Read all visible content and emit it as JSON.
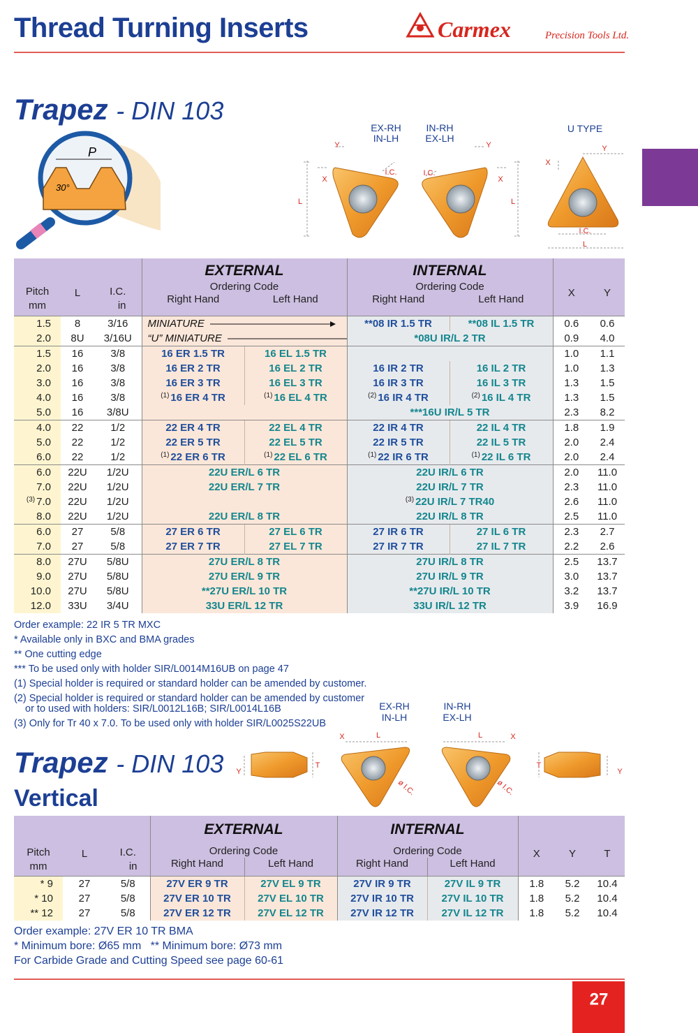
{
  "header": {
    "title": "Thread Turning Inserts",
    "brand": "Carmex",
    "brand_sub": "Precision Tools Ltd."
  },
  "section1": {
    "title": "Trapez",
    "subtitle": "- DIN 103",
    "magnifier": [
      "P",
      "30°"
    ],
    "captions": [
      "EX-RH",
      "IN-LH",
      "IN-RH",
      "EX-LH",
      "U TYPE"
    ],
    "dims": [
      "Y",
      "X",
      "L",
      "I.C.",
      "I.C.",
      "Y",
      "X",
      "L",
      "Y",
      "X",
      "I.C.",
      "L"
    ]
  },
  "table1": {
    "head": {
      "pitch": "Pitch",
      "pitch_unit": "mm",
      "l": "L",
      "ic": "I.C.",
      "ic_unit": "in",
      "external": {
        "title": "EXTERNAL",
        "sub": "Ordering Code",
        "right": "Right Hand",
        "left": "Left Hand"
      },
      "internal": {
        "title": "INTERNAL",
        "sub": "Ordering Code",
        "right": "Right Hand",
        "left": "Left Hand"
      },
      "x": "X",
      "y": "Y"
    },
    "groups": [
      [
        {
          "pitch": "1.5",
          "l": "8",
          "ic": "3/16",
          "ext_lead": "MINIATURE",
          "int": [
            "**08 IR 1.5 TR",
            "**08 IL 1.5 TR"
          ],
          "x": "0.6",
          "y": "0.6"
        },
        {
          "pitch": "2.0",
          "l": "8U",
          "ic": "3/16U",
          "ext_lead": "“U” MINIATURE",
          "int": "*08U IR/L 2 TR",
          "x": "0.9",
          "y": "4.0"
        }
      ],
      [
        {
          "pitch": "1.5",
          "l": "16",
          "ic": "3/8",
          "ext": [
            "16 ER 1.5 TR",
            "16 EL 1.5 TR"
          ],
          "x": "1.0",
          "y": "1.1"
        },
        {
          "pitch": "2.0",
          "l": "16",
          "ic": "3/8",
          "ext": [
            "16 ER 2 TR",
            "16 EL 2 TR"
          ],
          "int": [
            "16 IR 2 TR",
            "16 IL 2 TR"
          ],
          "x": "1.0",
          "y": "1.3"
        },
        {
          "pitch": "3.0",
          "l": "16",
          "ic": "3/8",
          "ext": [
            "16 ER 3 TR",
            "16 EL 3 TR"
          ],
          "int": [
            "16 IR 3 TR",
            "16 IL 3 TR"
          ],
          "x": "1.3",
          "y": "1.5"
        },
        {
          "pitch": "4.0",
          "l": "16",
          "ic": "3/8",
          "ext": [
            {
              "note": "(1)",
              "text": "16 ER 4 TR"
            },
            {
              "note": "(1)",
              "text": "16 EL 4 TR"
            }
          ],
          "int": [
            {
              "note": "(2)",
              "text": "16 IR 4 TR"
            },
            {
              "note": "(2)",
              "text": "16 IL 4 TR"
            }
          ],
          "x": "1.3",
          "y": "1.5"
        },
        {
          "pitch": "5.0",
          "l": "16",
          "ic": "3/8U",
          "int": "***16U IR/L 5 TR",
          "x": "2.3",
          "y": "8.2"
        }
      ],
      [
        {
          "pitch": "4.0",
          "l": "22",
          "ic": "1/2",
          "ext": [
            "22 ER 4 TR",
            "22 EL 4 TR"
          ],
          "int": [
            "22 IR 4 TR",
            "22 IL 4 TR"
          ],
          "x": "1.8",
          "y": "1.9"
        },
        {
          "pitch": "5.0",
          "l": "22",
          "ic": "1/2",
          "ext": [
            "22 ER 5 TR",
            "22 EL 5 TR"
          ],
          "int": [
            "22 IR 5 TR",
            "22 IL 5 TR"
          ],
          "x": "2.0",
          "y": "2.4"
        },
        {
          "pitch": "6.0",
          "l": "22",
          "ic": "1/2",
          "ext": [
            {
              "note": "(1)",
              "text": "22 ER 6 TR"
            },
            {
              "note": "(1)",
              "text": "22 EL 6 TR"
            }
          ],
          "int": [
            {
              "note": "(1)",
              "text": "22 IR 6 TR"
            },
            {
              "note": "(1)",
              "text": "22 IL 6 TR"
            }
          ],
          "x": "2.0",
          "y": "2.4"
        }
      ],
      [
        {
          "pitch": "6.0",
          "l": "22U",
          "ic": "1/2U",
          "ext": "22U ER/L 6 TR",
          "int": "22U IR/L 6 TR",
          "x": "2.0",
          "y": "11.0"
        },
        {
          "pitch": "7.0",
          "l": "22U",
          "ic": "1/2U",
          "ext": "22U ER/L 7 TR",
          "int": "22U IR/L 7 TR",
          "x": "2.3",
          "y": "11.0"
        },
        {
          "pitch": {
            "note": "(3)",
            "text": "7.0"
          },
          "l": "22U",
          "ic": "1/2U",
          "int": {
            "note": "(3)",
            "text": "22U IR/L 7 TR40"
          },
          "x": "2.6",
          "y": "11.0"
        },
        {
          "pitch": "8.0",
          "l": "22U",
          "ic": "1/2U",
          "ext": "22U ER/L 8 TR",
          "int": "22U IR/L 8 TR",
          "x": "2.5",
          "y": "11.0"
        }
      ],
      [
        {
          "pitch": "6.0",
          "l": "27",
          "ic": "5/8",
          "ext": [
            "27 ER 6 TR",
            "27 EL 6 TR"
          ],
          "int": [
            "27 IR 6 TR",
            "27 IL 6 TR"
          ],
          "x": "2.3",
          "y": "2.7"
        },
        {
          "pitch": "7.0",
          "l": "27",
          "ic": "5/8",
          "ext": [
            "27 ER 7 TR",
            "27 EL 7 TR"
          ],
          "int": [
            "27 IR 7 TR",
            "27 IL 7 TR"
          ],
          "x": "2.2",
          "y": "2.6"
        }
      ],
      [
        {
          "pitch": "8.0",
          "l": "27U",
          "ic": "5/8U",
          "ext": "27U ER/L 8 TR",
          "int": "27U IR/L 8 TR",
          "x": "2.5",
          "y": "13.7"
        },
        {
          "pitch": "9.0",
          "l": "27U",
          "ic": "5/8U",
          "ext": "27U ER/L 9 TR",
          "int": "27U IR/L 9 TR",
          "x": "3.0",
          "y": "13.7"
        },
        {
          "pitch": "10.0",
          "l": "27U",
          "ic": "5/8U",
          "ext": "**27U ER/L 10 TR",
          "int": "**27U IR/L 10 TR",
          "x": "3.2",
          "y": "13.7"
        },
        {
          "pitch": "12.0",
          "l": "33U",
          "ic": "3/4U",
          "ext": "33U ER/L 12 TR",
          "int": "33U IR/L 12 TR",
          "x": "3.9",
          "y": "16.9"
        }
      ]
    ]
  },
  "notes1": [
    "Order example: 22 IR 5 TR MXC",
    "* Available only in BXC and BMA grades",
    "** One cutting edge",
    "*** To be used only with holder SIR/L0014M16UB on page 47",
    "(1) Special holder is required or standard holder can be amended by customer.",
    "(2) Special holder is required or standard holder can be amended by customer",
    "or to used with holders: SIR/L0012L16B; SIR/L0014L16B",
    "(3) Only for Tr 40 x 7.0. To be used only with holder SIR/L0025S22UB"
  ],
  "section2": {
    "title": "Trapez",
    "subtitle": "- DIN 103",
    "subtitle2": "Vertical",
    "captions": [
      "EX-RH",
      "IN-LH",
      "IN-RH",
      "EX-LH"
    ],
    "dims": [
      "Y",
      "T",
      "X",
      "L",
      "ø I.C.",
      "L",
      "X",
      "ø I.C.",
      "T",
      "Y"
    ]
  },
  "table2": {
    "head": {
      "pitch": "Pitch",
      "pitch_unit": "mm",
      "l": "L",
      "ic": "I.C.",
      "ic_unit": "in",
      "external": {
        "title": "EXTERNAL",
        "sub": "Ordering Code",
        "right": "Right Hand",
        "left": "Left Hand"
      },
      "internal": {
        "title": "INTERNAL",
        "sub": "Ordering Code",
        "right": "Right Hand",
        "left": "Left Hand"
      },
      "x": "X",
      "y": "Y",
      "t": "T"
    },
    "rows": [
      [
        "* 9",
        "27",
        "5/8",
        "27V ER 9 TR",
        "27V EL 9 TR",
        "27V IR 9 TR",
        "27V IL 9 TR",
        "1.8",
        "5.2",
        "10.4"
      ],
      [
        "* 10",
        "27",
        "5/8",
        "27V ER 10 TR",
        "27V EL 10 TR",
        "27V IR 10 TR",
        "27V IL 10 TR",
        "1.8",
        "5.2",
        "10.4"
      ],
      [
        "** 12",
        "27",
        "5/8",
        "27V ER 12 TR",
        "27V EL 12 TR",
        "27V IR 12 TR",
        "27V IL 12 TR",
        "1.8",
        "5.2",
        "10.4"
      ]
    ]
  },
  "notes2": [
    "Order example: 27V ER 10 TR BMA",
    "* Minimum bore: Ø65 mm   ** Minimum bore: Ø73 mm",
    "For Carbide Grade and Cutting Speed see page 60-61"
  ],
  "footer": {
    "page": "27"
  }
}
